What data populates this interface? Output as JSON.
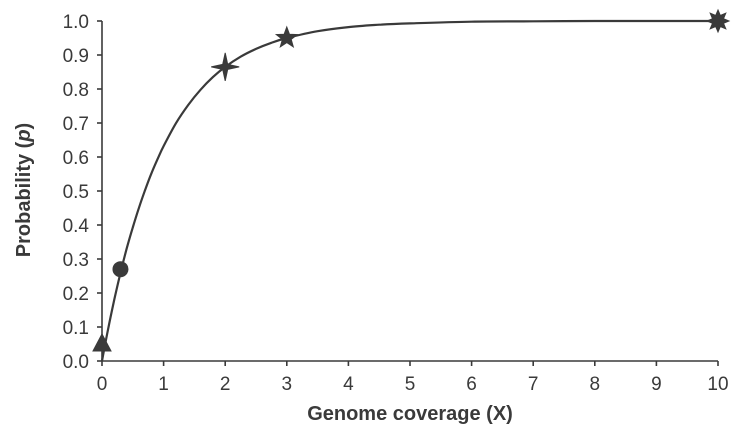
{
  "chart_data": {
    "type": "line",
    "title": "",
    "xlabel": "Genome coverage (X)",
    "ylabel_prefix": "Probability (",
    "ylabel_var": "p",
    "ylabel_suffix": ")",
    "xlim": [
      0,
      10
    ],
    "ylim": [
      0.0,
      1.0
    ],
    "x_ticks": [
      0,
      1,
      2,
      3,
      4,
      5,
      6,
      7,
      8,
      9,
      10
    ],
    "x_tick_labels": [
      "0",
      "1",
      "2",
      "3",
      "4",
      "5",
      "6",
      "7",
      "8",
      "9",
      "10"
    ],
    "y_ticks": [
      0.0,
      0.1,
      0.2,
      0.3,
      0.4,
      0.5,
      0.6,
      0.7,
      0.8,
      0.9,
      1.0
    ],
    "y_tick_labels": [
      "0.0",
      "0.1",
      "0.2",
      "0.3",
      "0.4",
      "0.5",
      "0.6",
      "0.7",
      "0.8",
      "0.9",
      "1.0"
    ],
    "grid": false,
    "legend": "none",
    "line_color": "#3a3a3a",
    "curve": {
      "x": [
        0,
        0.1,
        0.2,
        0.3,
        0.4,
        0.5,
        0.6,
        0.7,
        0.8,
        0.9,
        1.0,
        1.2,
        1.4,
        1.6,
        1.8,
        2.0,
        2.25,
        2.5,
        2.75,
        3.0,
        3.5,
        4.0,
        4.5,
        5.0,
        6.0,
        7.0,
        8.0,
        9.0,
        10.0
      ],
      "y": [
        0.0,
        0.095,
        0.181,
        0.259,
        0.33,
        0.393,
        0.451,
        0.503,
        0.551,
        0.593,
        0.632,
        0.699,
        0.753,
        0.798,
        0.835,
        0.865,
        0.895,
        0.918,
        0.936,
        0.95,
        0.97,
        0.982,
        0.989,
        0.993,
        0.998,
        0.999,
        1.0,
        1.0,
        1.0
      ]
    },
    "markers": [
      {
        "name": "triangle",
        "x": 0.0,
        "y": 0.05
      },
      {
        "name": "circle",
        "x": 0.3,
        "y": 0.27
      },
      {
        "name": "star-4",
        "x": 2.0,
        "y": 0.865
      },
      {
        "name": "star-5",
        "x": 3.0,
        "y": 0.95
      },
      {
        "name": "star-8",
        "x": 10.0,
        "y": 1.0
      }
    ]
  }
}
